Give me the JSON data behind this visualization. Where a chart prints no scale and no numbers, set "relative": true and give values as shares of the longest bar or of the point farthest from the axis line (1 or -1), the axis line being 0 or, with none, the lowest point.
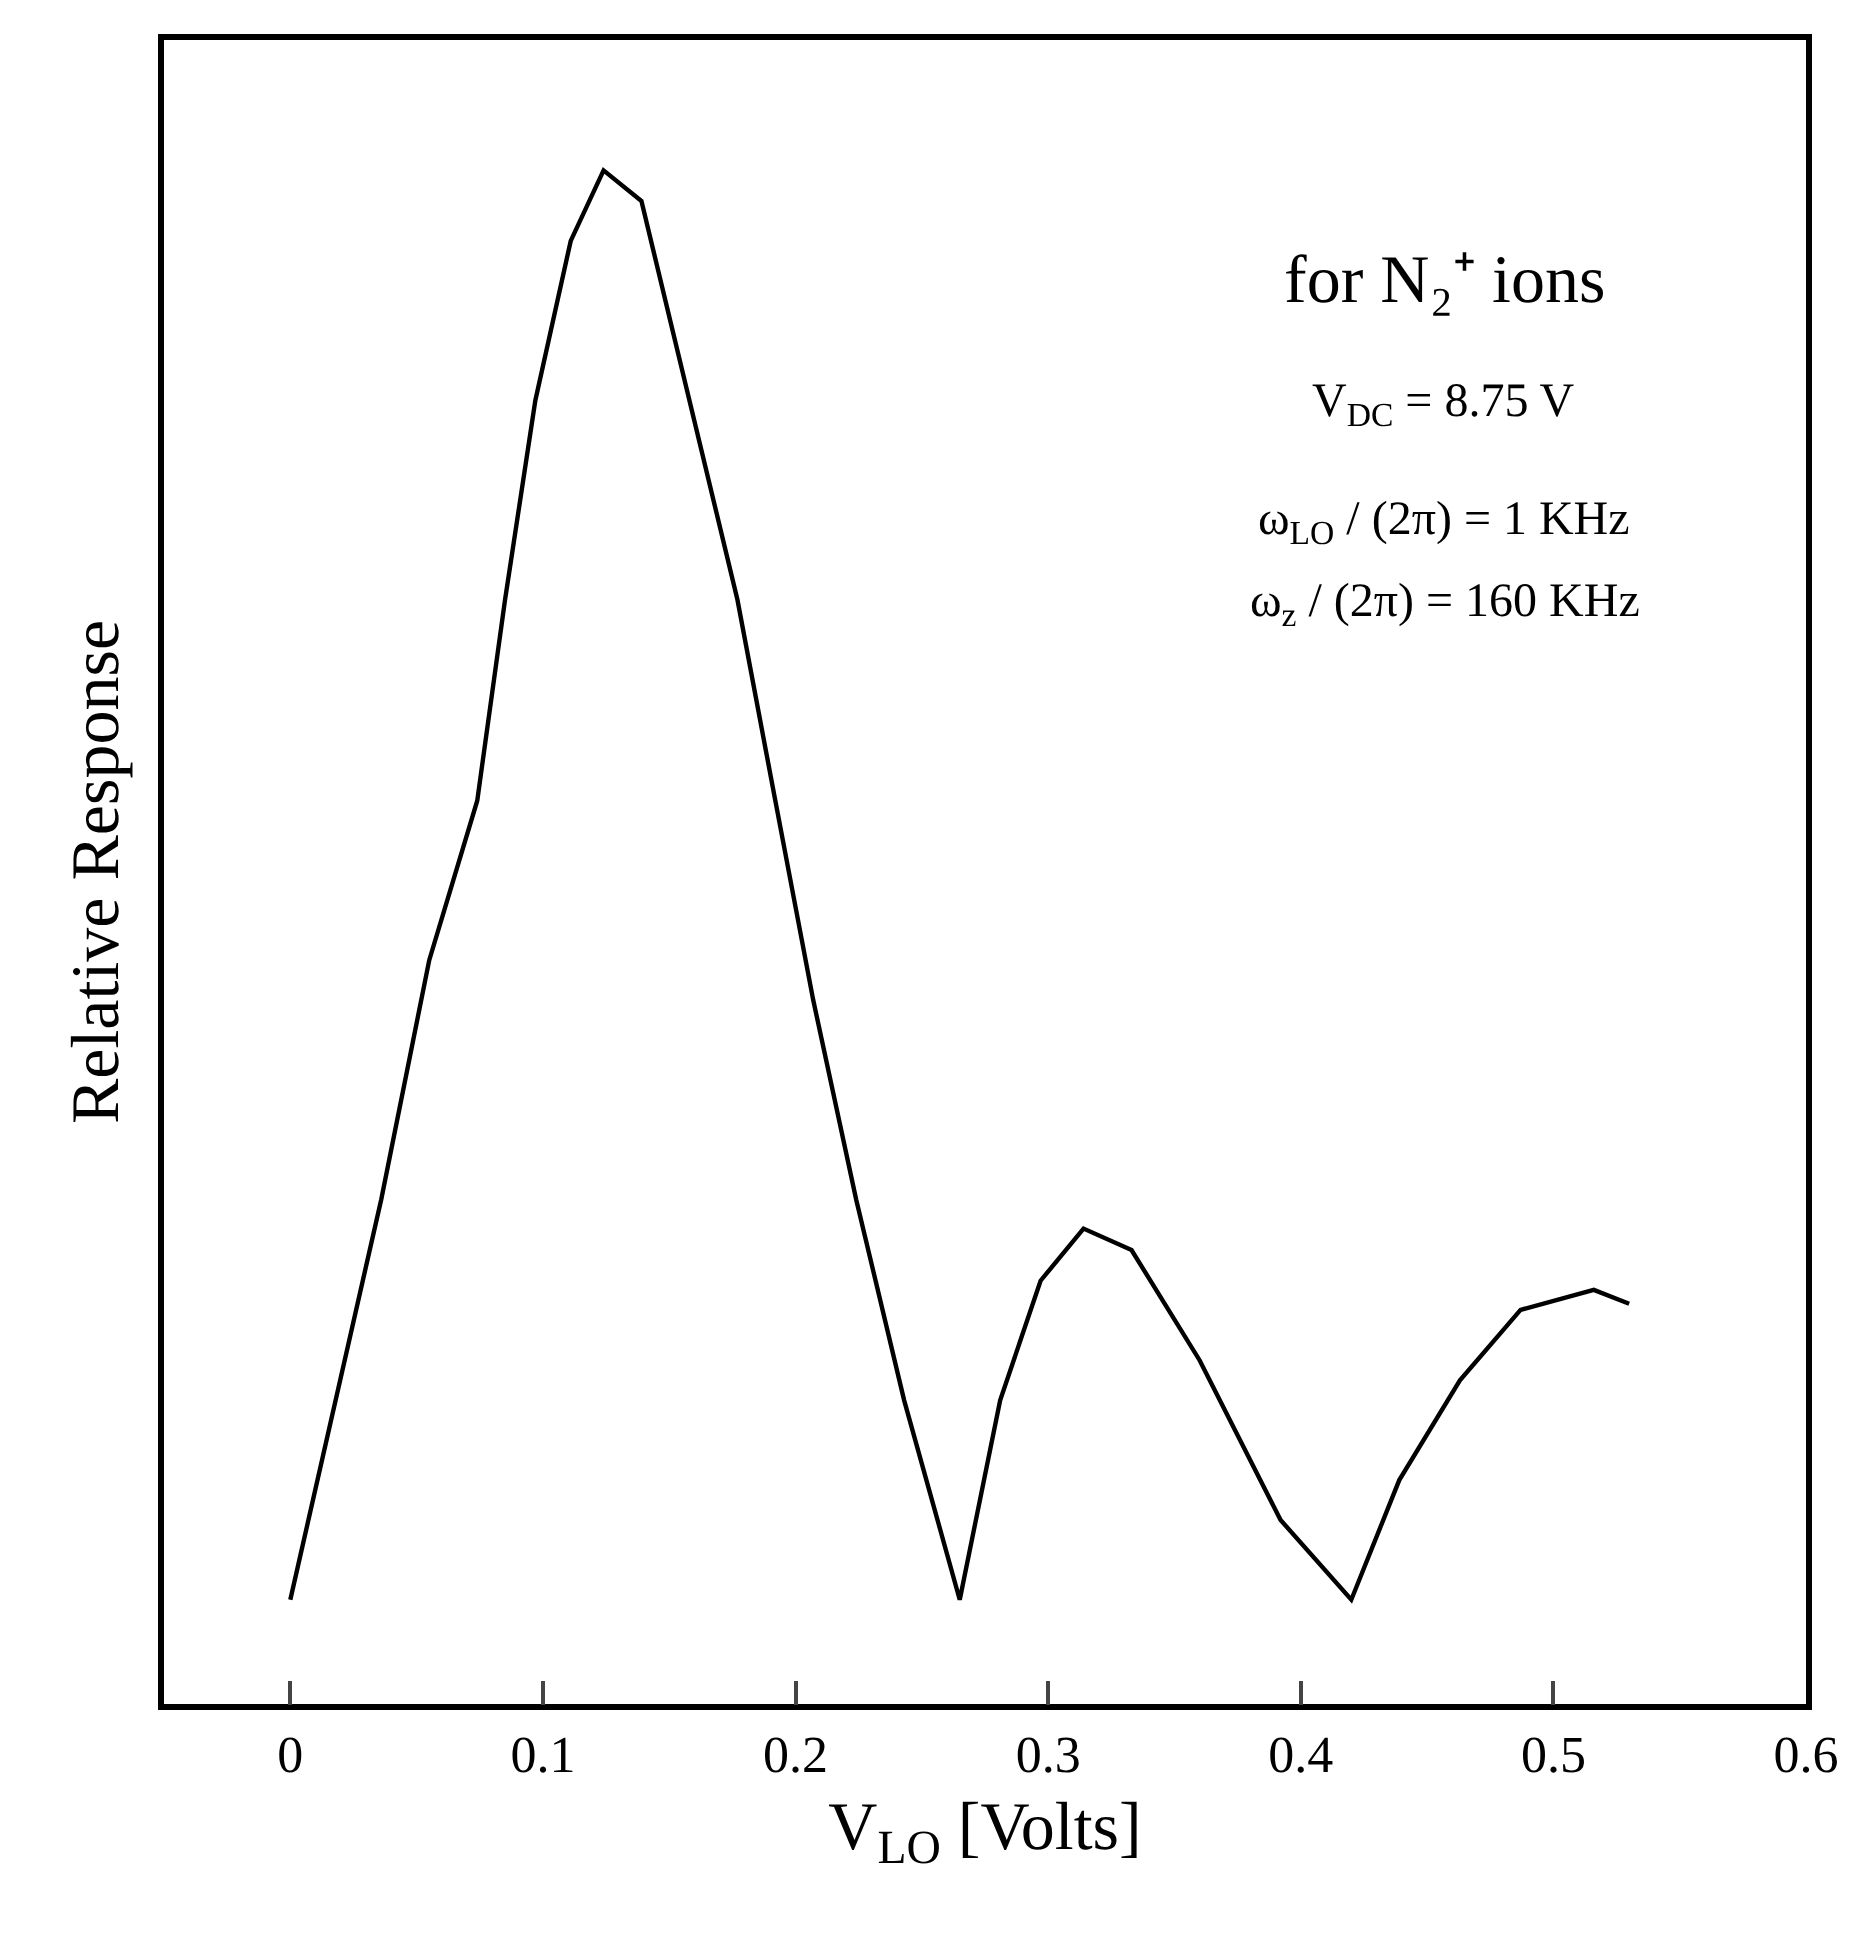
{
  "chart_data": {
    "type": "line",
    "relative": true,
    "xlabel": "V$_{LO}$ [Volts]",
    "ylabel": "Relative Response",
    "x": [
      0,
      0.036,
      0.055,
      0.074,
      0.085,
      0.097,
      0.111,
      0.124,
      0.139,
      0.158,
      0.177,
      0.192,
      0.207,
      0.224,
      0.243,
      0.265,
      0.281,
      0.297,
      0.314,
      0.333,
      0.36,
      0.392,
      0.42,
      0.439,
      0.463,
      0.487,
      0.516,
      0.53
    ],
    "series": [
      {
        "color": "#000000",
        "values": [
          0.068,
          0.329,
          0.485,
          0.589,
          0.72,
          0.85,
          0.954,
          1,
          0.98,
          0.85,
          0.72,
          0.589,
          0.459,
          0.329,
          0.198,
          0.068,
          0.198,
          0.276,
          0.31,
          0.296,
          0.224,
          0.12,
          0.068,
          0.146,
          0.211,
          0.257,
          0.27,
          0.261
        ]
      }
    ],
    "xlim": [
      -0.05,
      0.6
    ],
    "xticks": [
      0,
      0.1,
      0.2,
      0.3,
      0.4,
      0.5,
      0.6
    ],
    "annotations": [
      "for N₂⁺ ions",
      "V$_{DC}$ = 8.75 V",
      "ω$_{LO}$ / (2π) = 1 KHz",
      "ω$_{z}$ / (2π) = 160 KHz"
    ],
    "grid": false,
    "marker": "none",
    "line_style": "solid"
  }
}
